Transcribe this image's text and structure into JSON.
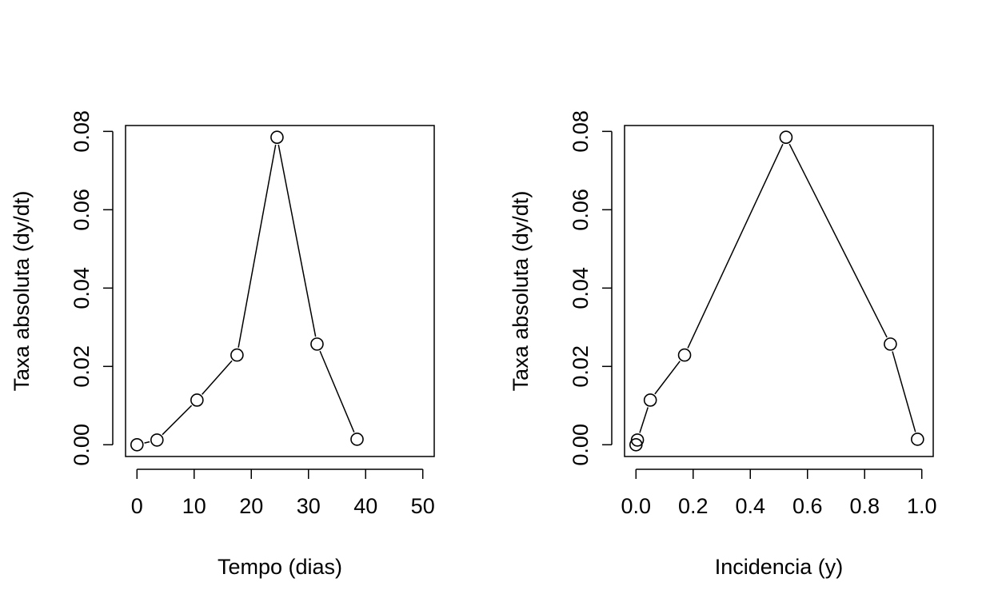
{
  "chart_data": [
    {
      "type": "line",
      "markers": "open-circle",
      "xlabel": "Tempo (dias)",
      "ylabel": "Taxa absoluta (dy/dt)",
      "xlim": [
        -2,
        52
      ],
      "ylim": [
        -0.003,
        0.0815
      ],
      "xticks": [
        0,
        10,
        20,
        30,
        40,
        50
      ],
      "xtick_labels": [
        "0",
        "10",
        "20",
        "30",
        "40",
        "50"
      ],
      "yticks": [
        0,
        0.02,
        0.04,
        0.06,
        0.08
      ],
      "ytick_labels": [
        "0.00",
        "0.02",
        "0.04",
        "0.06",
        "0.08"
      ],
      "x": [
        0,
        3.5,
        10.5,
        17.5,
        24.5,
        31.5,
        38.5
      ],
      "y": [
        0.0,
        0.0012,
        0.0114,
        0.0229,
        0.0785,
        0.0257,
        0.0014
      ]
    },
    {
      "type": "line",
      "markers": "open-circle",
      "xlabel": "Incidencia (y)",
      "ylabel": "Taxa absoluta (dy/dt)",
      "xlim": [
        -0.04,
        1.04
      ],
      "ylim": [
        -0.003,
        0.0815
      ],
      "xticks": [
        0,
        0.2,
        0.4,
        0.6,
        0.8,
        1.0
      ],
      "xtick_labels": [
        "0.0",
        "0.2",
        "0.4",
        "0.6",
        "0.8",
        "1.0"
      ],
      "yticks": [
        0,
        0.02,
        0.04,
        0.06,
        0.08
      ],
      "ytick_labels": [
        "0.00",
        "0.02",
        "0.04",
        "0.06",
        "0.08"
      ],
      "x": [
        0.0,
        0.005,
        0.05,
        0.17,
        0.525,
        0.89,
        0.985
      ],
      "y": [
        0.0,
        0.0012,
        0.0114,
        0.0229,
        0.0785,
        0.0257,
        0.0014
      ]
    }
  ]
}
